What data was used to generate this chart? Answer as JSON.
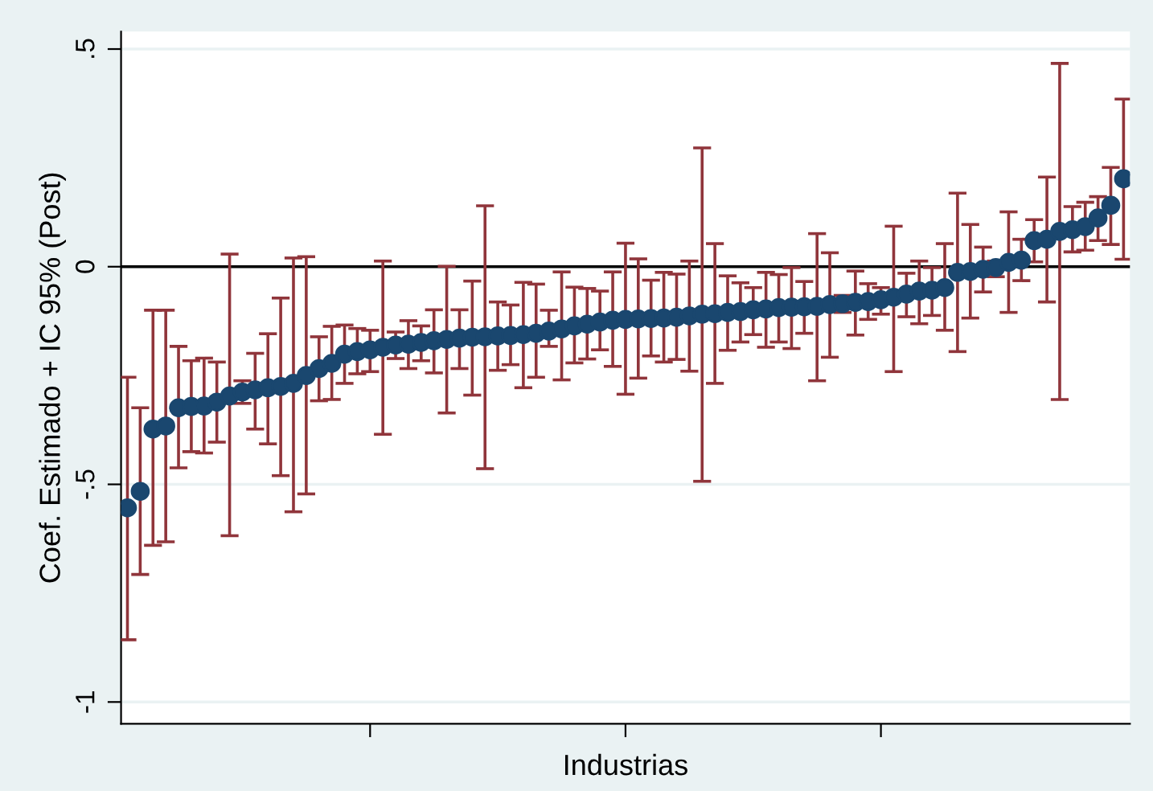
{
  "chart_data": {
    "type": "scatter",
    "ylabel": "Coef. Estimado + IC 95% (Post)",
    "xlabel": "Industrias",
    "categories": [
      null,
      null,
      null,
      null,
      null,
      null,
      null,
      null,
      null,
      null,
      null,
      null,
      null,
      null,
      null,
      null,
      null,
      null,
      null,
      null,
      null,
      null,
      null,
      null,
      null,
      null,
      null,
      null,
      null,
      null,
      null,
      null,
      null,
      null,
      null,
      null,
      null,
      null,
      null,
      null,
      null,
      null,
      null,
      null,
      null,
      null,
      null,
      null,
      null,
      null,
      null,
      null,
      null,
      null,
      null,
      null,
      null,
      null,
      null,
      null,
      null,
      null,
      null,
      null,
      null,
      null,
      null,
      null,
      null,
      null,
      null,
      null,
      null,
      null,
      null,
      null,
      null,
      null,
      null
    ],
    "series": [
      {
        "color": "#1a476f",
        "values": [
          -0.554,
          -0.516,
          -0.373,
          -0.366,
          -0.324,
          -0.321,
          -0.32,
          -0.311,
          -0.297,
          -0.288,
          -0.283,
          -0.278,
          -0.275,
          -0.268,
          -0.25,
          -0.234,
          -0.222,
          -0.201,
          -0.195,
          -0.191,
          -0.185,
          -0.18,
          -0.178,
          -0.174,
          -0.17,
          -0.167,
          -0.164,
          -0.162,
          -0.161,
          -0.159,
          -0.158,
          -0.156,
          -0.153,
          -0.148,
          -0.143,
          -0.136,
          -0.132,
          -0.127,
          -0.123,
          -0.121,
          -0.12,
          -0.119,
          -0.118,
          -0.116,
          -0.113,
          -0.109,
          -0.108,
          -0.105,
          -0.103,
          -0.099,
          -0.097,
          -0.094,
          -0.093,
          -0.092,
          -0.091,
          -0.087,
          -0.085,
          -0.082,
          -0.08,
          -0.076,
          -0.07,
          -0.063,
          -0.056,
          -0.054,
          -0.048,
          -0.013,
          -0.011,
          -0.006,
          -0.002,
          0.01,
          0.015,
          0.06,
          0.063,
          0.081,
          0.085,
          0.092,
          0.112,
          0.141,
          0.202
        ],
        "errors": [
          [
            -0.857,
            -0.254
          ],
          [
            -0.707,
            -0.324
          ],
          [
            -0.64,
            -0.1
          ],
          [
            -0.632,
            -0.1
          ],
          [
            -0.462,
            -0.183
          ],
          [
            -0.425,
            -0.216
          ],
          [
            -0.428,
            -0.21
          ],
          [
            -0.403,
            -0.219
          ],
          [
            -0.618,
            0.029
          ],
          [
            -0.314,
            -0.262
          ],
          [
            -0.373,
            -0.199
          ],
          [
            -0.407,
            -0.154
          ],
          [
            -0.48,
            -0.072
          ],
          [
            -0.563,
            0.02
          ],
          [
            -0.522,
            0.023
          ],
          [
            -0.308,
            -0.161
          ],
          [
            -0.305,
            -0.137
          ],
          [
            -0.268,
            -0.134
          ],
          [
            -0.246,
            -0.142
          ],
          [
            -0.241,
            -0.146
          ],
          [
            -0.385,
            0.013
          ],
          [
            -0.211,
            -0.15
          ],
          [
            -0.234,
            -0.124
          ],
          [
            -0.216,
            -0.136
          ],
          [
            -0.244,
            -0.099
          ],
          [
            -0.336,
            0.001
          ],
          [
            -0.234,
            -0.099
          ],
          [
            -0.295,
            -0.033
          ],
          [
            -0.464,
            0.14
          ],
          [
            -0.238,
            -0.081
          ],
          [
            -0.225,
            -0.088
          ],
          [
            -0.278,
            -0.036
          ],
          [
            -0.254,
            -0.04
          ],
          [
            -0.183,
            -0.1
          ],
          [
            -0.26,
            -0.012
          ],
          [
            -0.221,
            -0.047
          ],
          [
            -0.212,
            -0.05
          ],
          [
            -0.191,
            -0.056
          ],
          [
            -0.229,
            -0.012
          ],
          [
            -0.293,
            0.054
          ],
          [
            -0.256,
            0.018
          ],
          [
            -0.205,
            -0.031
          ],
          [
            -0.219,
            -0.013
          ],
          [
            -0.213,
            -0.017
          ],
          [
            -0.24,
            0.013
          ],
          [
            -0.493,
            0.273
          ],
          [
            -0.268,
            0.053
          ],
          [
            -0.192,
            -0.021
          ],
          [
            -0.173,
            -0.037
          ],
          [
            -0.156,
            -0.048
          ],
          [
            -0.185,
            -0.013
          ],
          [
            -0.173,
            -0.018
          ],
          [
            -0.188,
            -0.002
          ],
          [
            -0.153,
            -0.034
          ],
          [
            -0.262,
            0.076
          ],
          [
            -0.208,
            0.032
          ],
          [
            -0.105,
            -0.066
          ],
          [
            -0.157,
            -0.01
          ],
          [
            -0.121,
            -0.039
          ],
          [
            -0.109,
            -0.048
          ],
          [
            -0.241,
            0.093
          ],
          [
            -0.115,
            -0.015
          ],
          [
            -0.131,
            0.013
          ],
          [
            -0.112,
            -0.002
          ],
          [
            -0.146,
            0.053
          ],
          [
            -0.195,
            0.169
          ],
          [
            -0.118,
            0.097
          ],
          [
            -0.058,
            0.045
          ],
          [
            -0.023,
            0.013
          ],
          [
            -0.105,
            0.126
          ],
          [
            -0.032,
            0.063
          ],
          [
            0.011,
            0.108
          ],
          [
            -0.081,
            0.206
          ],
          [
            -0.305,
            0.467
          ],
          [
            0.034,
            0.138
          ],
          [
            0.038,
            0.148
          ],
          [
            0.06,
            0.161
          ],
          [
            0.051,
            0.228
          ],
          [
            0.017,
            0.385
          ]
        ]
      }
    ],
    "ylim": [
      -1.05,
      0.54
    ],
    "yticks": [
      {
        "value": -1,
        "label": "-1"
      },
      {
        "value": -0.5,
        "label": "-.5"
      },
      {
        "value": 0,
        "label": "0"
      },
      {
        "value": 0.5,
        "label": ".5"
      }
    ],
    "grid": "y",
    "marker": "circle",
    "ref_lines": [
      {
        "axis": "y",
        "value": 0,
        "color": "#000000"
      }
    ]
  }
}
